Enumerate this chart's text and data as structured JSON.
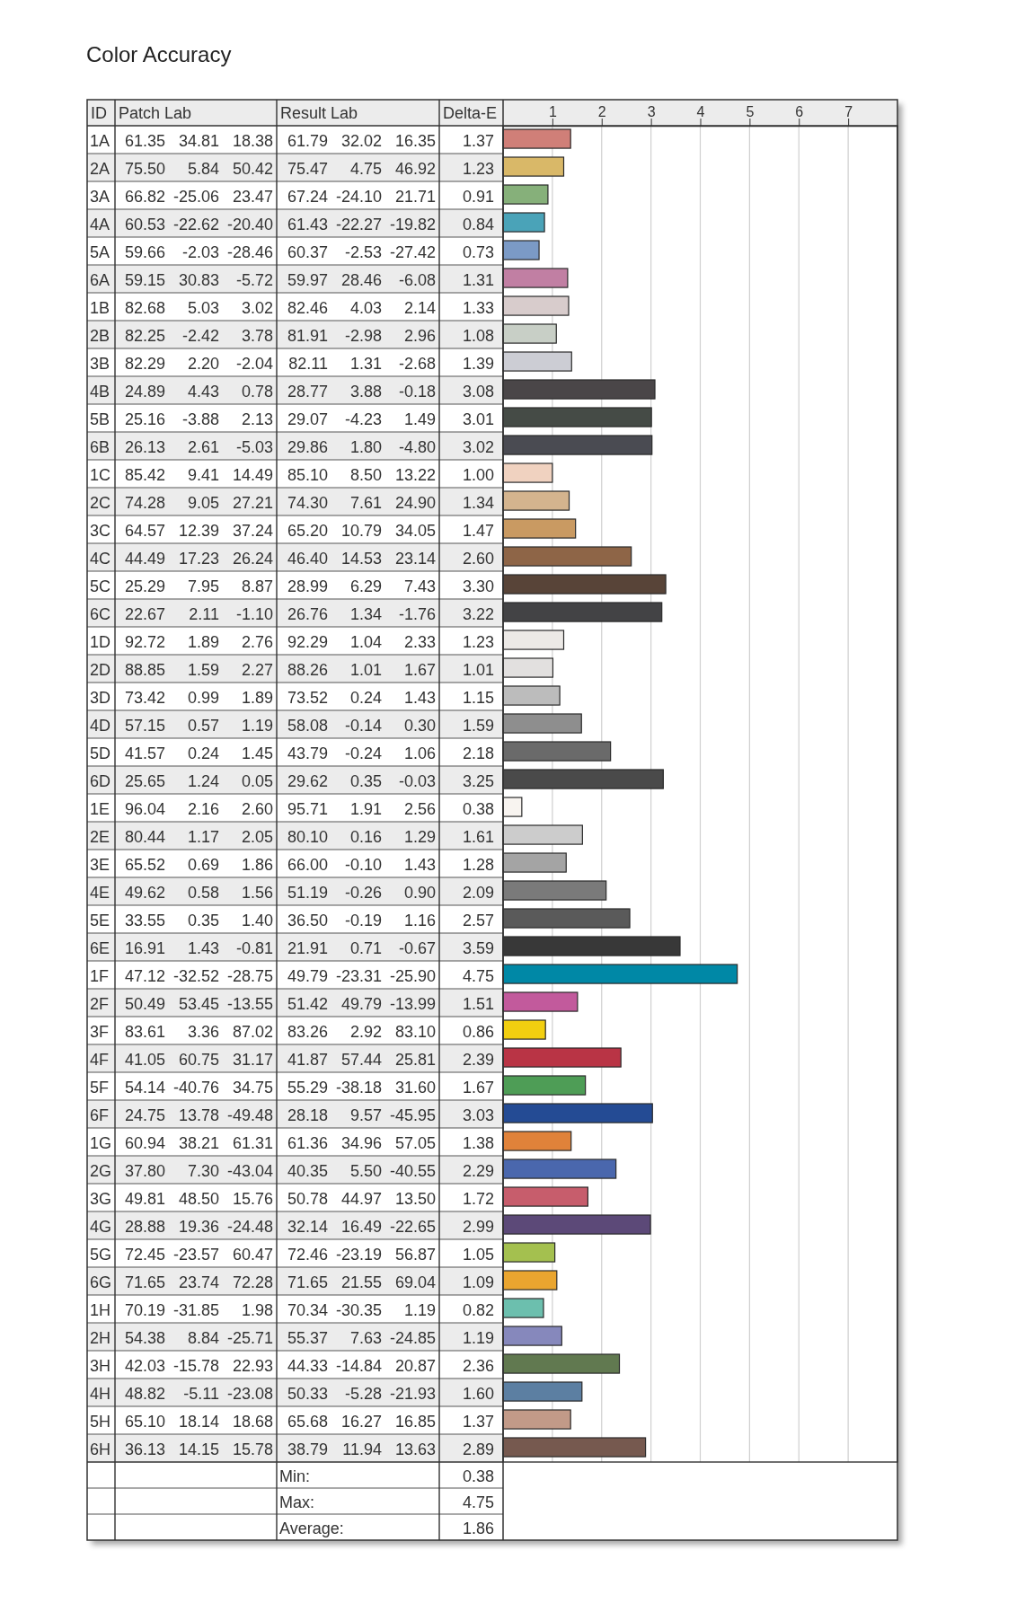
{
  "chart_data": {
    "type": "bar",
    "orientation": "horizontal",
    "title": "Color Accuracy",
    "ylabel": "ID",
    "xlabel": "Delta-E",
    "categories": [
      "1A",
      "2A",
      "3A",
      "4A",
      "5A",
      "6A",
      "1B",
      "2B",
      "3B",
      "4B",
      "5B",
      "6B",
      "1C",
      "2C",
      "3C",
      "4C",
      "5C",
      "6C",
      "1D",
      "2D",
      "3D",
      "4D",
      "5D",
      "6D",
      "1E",
      "2E",
      "3E",
      "4E",
      "5E",
      "6E",
      "1F",
      "2F",
      "3F",
      "4F",
      "5F",
      "6F",
      "1G",
      "2G",
      "3G",
      "4G",
      "5G",
      "6G",
      "1H",
      "2H",
      "3H",
      "4H",
      "5H",
      "6H"
    ],
    "values": [
      1.37,
      1.23,
      0.91,
      0.84,
      0.73,
      1.31,
      1.33,
      1.08,
      1.39,
      3.08,
      3.01,
      3.02,
      1.0,
      1.34,
      1.47,
      2.6,
      3.3,
      3.22,
      1.23,
      1.01,
      1.15,
      1.59,
      2.18,
      3.25,
      0.38,
      1.61,
      1.28,
      2.09,
      2.57,
      3.59,
      4.75,
      1.51,
      0.86,
      2.39,
      1.67,
      3.03,
      1.38,
      2.29,
      1.72,
      2.99,
      1.05,
      1.09,
      0.82,
      1.19,
      2.36,
      1.6,
      1.37,
      2.89
    ],
    "value_labels": [
      "1.37",
      "1.23",
      "0.91",
      "0.84",
      "0.73",
      "1.31",
      "1.33",
      "1.08",
      "1.39",
      "3.08",
      "3.01",
      "3.02",
      "1.00",
      "1.34",
      "1.47",
      "2.60",
      "3.30",
      "3.22",
      "1.23",
      "1.01",
      "1.15",
      "1.59",
      "2.18",
      "3.25",
      "0.38",
      "1.61",
      "1.28",
      "2.09",
      "2.57",
      "3.59",
      "4.75",
      "1.51",
      "0.86",
      "2.39",
      "1.67",
      "3.03",
      "1.38",
      "2.29",
      "1.72",
      "2.99",
      "1.05",
      "1.09",
      "0.82",
      "1.19",
      "2.36",
      "1.60",
      "1.37",
      "2.89"
    ],
    "colors": [
      "#d07f78",
      "#d9b868",
      "#86b07a",
      "#4aa3b8",
      "#7b9ac6",
      "#c17fa3",
      "#d8cccc",
      "#c8cfc6",
      "#cccdd4",
      "#4a4648",
      "#454b46",
      "#4a4b52",
      "#f0d2c0",
      "#d4b48e",
      "#c99a62",
      "#8e6547",
      "#584438",
      "#434345",
      "#ece9e6",
      "#e2e0df",
      "#bcbcbc",
      "#8e8e8e",
      "#6a6a6a",
      "#4a4a4a",
      "#f8f4f0",
      "#cccccc",
      "#a4a4a4",
      "#7a7a7a",
      "#5a5a5a",
      "#383838",
      "#0088a6",
      "#c25a9c",
      "#f2cf10",
      "#b93445",
      "#4e9d56",
      "#244b94",
      "#e0823a",
      "#4a67ad",
      "#c75d6c",
      "#5c4978",
      "#a4c04f",
      "#eaa52f",
      "#6cbfae",
      "#8688bc",
      "#617950",
      "#5c7fa2",
      "#c29a88",
      "#76594f"
    ],
    "xlim": [
      0,
      8
    ],
    "x2lim": [
      0,
      8
    ],
    "x2ticks": [
      1,
      2,
      3,
      4,
      5,
      6,
      7
    ],
    "grid": "x",
    "annotations": [
      "Patch Lab",
      "Result Lab",
      "61.35 34.81 18.38",
      "61.79 32.02 16.35",
      "75.50 5.84 50.42",
      "75.47 4.75 46.92",
      "66.82 -25.06 23.47",
      "67.24 -24.10 21.71",
      "60.53 -22.62 -20.40",
      "61.43 -22.27 -19.82",
      "59.66 -2.03 -28.46",
      "60.37 -2.53 -27.42",
      "59.15 30.83 -5.72",
      "59.97 28.46 -6.08",
      "82.68 5.03 3.02",
      "82.46 4.03 2.14",
      "82.25 -2.42 3.78",
      "81.91 -2.98 2.96",
      "82.29 2.20 -2.04",
      "82.11 1.31 -2.68",
      "24.89 4.43 0.78",
      "28.77 3.88 -0.18",
      "25.16 -3.88 2.13",
      "29.07 -4.23 1.49",
      "26.13 2.61 -5.03",
      "29.86 1.80 -4.80",
      "85.42 9.41 14.49",
      "85.10 8.50 13.22",
      "74.28 9.05 27.21",
      "74.30 7.61 24.90",
      "64.57 12.39 37.24",
      "65.20 10.79 34.05",
      "44.49 17.23 26.24",
      "46.40 14.53 23.14",
      "25.29 7.95 8.87",
      "28.99 6.29 7.43",
      "22.67 2.11 -1.10",
      "26.76 1.34 -1.76",
      "92.72 1.89 2.76",
      "92.29 1.04 2.33",
      "88.85 1.59 2.27",
      "88.26 1.01 1.67",
      "73.42 0.99 1.89",
      "73.52 0.24 1.43",
      "57.15 0.57 1.19",
      "58.08 -0.14 0.30",
      "41.57 0.24 1.45",
      "43.79 -0.24 1.06",
      "25.65 1.24 0.05",
      "29.62 0.35 -0.03",
      "96.04 2.16 2.60",
      "95.71 1.91 2.56",
      "80.44 1.17 2.05",
      "80.10 0.16 1.29",
      "65.52 0.69 1.86",
      "66.00 -0.10 1.43",
      "49.62 0.58 1.56",
      "51.19 -0.26 0.90",
      "33.55 0.35 1.40",
      "36.50 -0.19 1.16",
      "16.91 1.43 -0.81",
      "21.91 0.71 -0.67",
      "47.12 -32.52 -28.75",
      "49.79 -23.31 -25.90",
      "50.49 53.45 -13.55",
      "51.42 49.79 -13.99",
      "83.61 3.36 87.02",
      "83.26 2.92 83.10",
      "41.05 60.75 31.17",
      "41.87 57.44 25.81",
      "54.14 -40.76 34.75",
      "55.29 -38.18 31.60",
      "24.75 13.78 -49.48",
      "28.18 9.57 -45.95",
      "60.94 38.21 61.31",
      "61.36 34.96 57.05",
      "37.80 7.30 -43.04",
      "40.35 5.50 -40.55",
      "49.81 48.50 15.76",
      "50.78 44.97 13.50",
      "28.88 19.36 -24.48",
      "32.14 16.49 -22.65",
      "72.45 -23.57 60.47",
      "72.46 -23.19 56.87",
      "71.65 23.74 72.28",
      "71.65 21.55 69.04",
      "70.19 -31.85 1.98",
      "70.34 -30.35 1.19",
      "54.38 8.84 -25.71",
      "55.37 7.63 -24.85",
      "42.03 -15.78 22.93",
      "44.33 -14.84 20.87",
      "48.82 -5.11 -23.08",
      "50.33 -5.28 -21.93",
      "65.10 18.14 18.68",
      "65.68 16.27 16.85",
      "36.13 14.15 15.78",
      "38.79 11.94 13.63",
      "Min:",
      "0.38",
      "Max:",
      "4.75",
      "Average:",
      "1.86"
    ]
  }
}
